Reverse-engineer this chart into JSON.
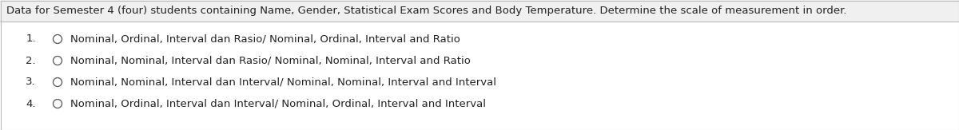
{
  "background_color": "#ffffff",
  "header_bg_color": "#f0f0f0",
  "border_color": "#bbbbbb",
  "header_text": "Data for Semester 4 (four) students containing Name, Gender, Statistical Exam Scores and Body Temperature. Determine the scale of measurement in order.",
  "header_fontsize": 9.5,
  "options": [
    {
      "num": "1.",
      "text": "Nominal, Ordinal, Interval dan Rasio/ Nominal, Ordinal, Interval and Ratio"
    },
    {
      "num": "2.",
      "text": "Nominal, Nominal, Interval dan Rasio/ Nominal, Nominal, Interval and Ratio"
    },
    {
      "num": "3.",
      "text": "Nominal, Nominal, Interval dan Interval/ Nominal, Nominal, Interval and Interval"
    },
    {
      "num": "4.",
      "text": "Nominal, Ordinal, Interval dan Interval/ Nominal, Ordinal, Interval and Interval"
    }
  ],
  "option_fontsize": 9.5,
  "text_color": "#222222",
  "figsize": [
    12.0,
    1.63
  ],
  "dpi": 100
}
